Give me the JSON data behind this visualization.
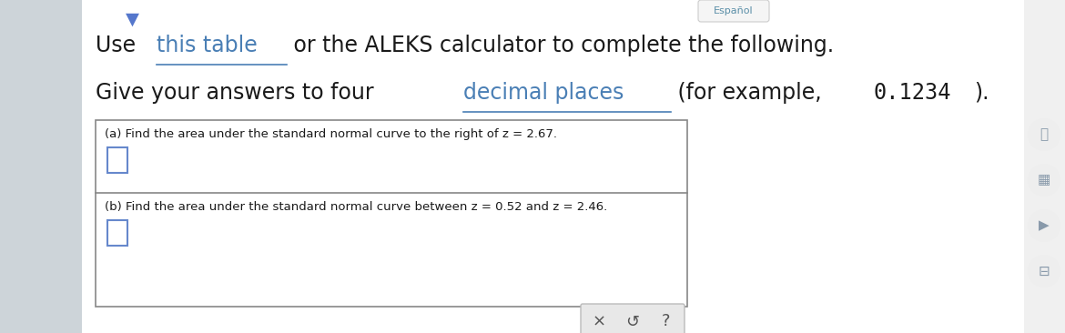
{
  "main_bg": "#ffffff",
  "left_sidebar_color": "#cdd4d9",
  "right_sidebar_color": "#f0f0f0",
  "espanol_text": "Español",
  "espanol_color": "#5b8fa8",
  "espanol_bg": "#f5f5f5",
  "espanol_border": "#cccccc",
  "chevron_color": "#5577cc",
  "line1_color": "#1a1a1a",
  "line1_link_color": "#4a7fb5",
  "line2_color": "#1a1a1a",
  "line2_link_color": "#4a7fb5",
  "box_border_color": "#888888",
  "box_bg": "#ffffff",
  "part_a_label": "(a) Find the area under the standard normal curve to the right of z = 2.67.",
  "part_b_label": "(b) Find the area under the standard normal curve between z = 0.52 and z = 2.46.",
  "input_border_color": "#6688cc",
  "input_bg": "#ffffff",
  "label_color": "#1a1a1a",
  "button_bg": "#e8e8e8",
  "button_border": "#bbbbbb",
  "button_color": "#555555",
  "icon_circle_color": "#eeeeee",
  "icon_color": "#8899aa"
}
